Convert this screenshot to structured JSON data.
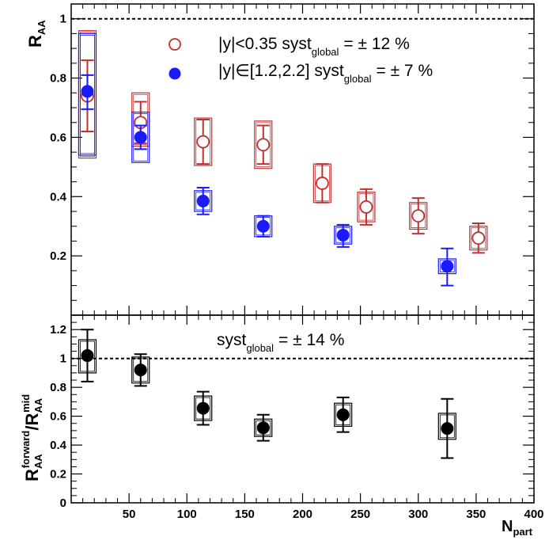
{
  "chart_data": [
    {
      "type": "scatter",
      "panel": "top",
      "ylabel": "R",
      "ylabel_sub": "AA",
      "xlim": [
        0,
        400
      ],
      "ylim": [
        0,
        1.05
      ],
      "x_ticks": [
        50,
        100,
        150,
        200,
        250,
        300,
        350,
        400
      ],
      "y_ticks": [
        0.2,
        0.4,
        0.6,
        0.8,
        1
      ],
      "y_tick_labels": [
        "0.2",
        "0.4",
        "0.6",
        "0.8",
        "1"
      ],
      "reference_line": 1,
      "legend_placement": "top-center",
      "series": [
        {
          "legend": {
            "main": "|y|<0.35   syst",
            "sub": "global",
            "tail": "= ± 12 %"
          },
          "marker": "open-circle",
          "color": "#c03030",
          "points": [
            {
              "x": 14,
              "y": 0.74,
              "stat_lo": 0.62,
              "stat_hi": 0.86,
              "sys_lo": 0.53,
              "sys_hi": 0.96
            },
            {
              "x": 60,
              "y": 0.65,
              "stat_lo": 0.58,
              "stat_hi": 0.72,
              "sys_lo": 0.57,
              "sys_hi": 0.75
            },
            {
              "x": 114,
              "y": 0.585,
              "stat_lo": 0.51,
              "stat_hi": 0.66,
              "sys_lo": 0.505,
              "sys_hi": 0.665
            },
            {
              "x": 166,
              "y": 0.575,
              "stat_lo": 0.51,
              "stat_hi": 0.64,
              "sys_lo": 0.495,
              "sys_hi": 0.655
            },
            {
              "x": 217,
              "y": 0.445,
              "stat_lo": 0.38,
              "stat_hi": 0.51,
              "sys_lo": 0.38,
              "sys_hi": 0.51
            },
            {
              "x": 255,
              "y": 0.365,
              "stat_lo": 0.305,
              "stat_hi": 0.425,
              "sys_lo": 0.315,
              "sys_hi": 0.415
            },
            {
              "x": 300,
              "y": 0.335,
              "stat_lo": 0.275,
              "stat_hi": 0.395,
              "sys_lo": 0.29,
              "sys_hi": 0.38
            },
            {
              "x": 352,
              "y": 0.26,
              "stat_lo": 0.21,
              "stat_hi": 0.31,
              "sys_lo": 0.22,
              "sys_hi": 0.3
            }
          ]
        },
        {
          "legend": {
            "main": "|y|∈[1.2,2.2]   syst",
            "sub": "global",
            "tail": "= ± 7 %"
          },
          "marker": "filled-circle",
          "color": "#1a1aff",
          "points": [
            {
              "x": 14,
              "y": 0.755,
              "stat_lo": 0.695,
              "stat_hi": 0.81,
              "sys_lo": 0.54,
              "sys_hi": 0.95
            },
            {
              "x": 60,
              "y": 0.6,
              "stat_lo": 0.56,
              "stat_hi": 0.64,
              "sys_lo": 0.515,
              "sys_hi": 0.685
            },
            {
              "x": 114,
              "y": 0.385,
              "stat_lo": 0.34,
              "stat_hi": 0.43,
              "sys_lo": 0.35,
              "sys_hi": 0.42
            },
            {
              "x": 166,
              "y": 0.3,
              "stat_lo": 0.265,
              "stat_hi": 0.335,
              "sys_lo": 0.265,
              "sys_hi": 0.335
            },
            {
              "x": 235,
              "y": 0.27,
              "stat_lo": 0.23,
              "stat_hi": 0.305,
              "sys_lo": 0.24,
              "sys_hi": 0.3
            },
            {
              "x": 325,
              "y": 0.165,
              "stat_lo": 0.1,
              "stat_hi": 0.225,
              "sys_lo": 0.14,
              "sys_hi": 0.19
            }
          ]
        }
      ]
    },
    {
      "type": "scatter",
      "panel": "bottom",
      "xlabel": "N",
      "xlabel_sub": "part",
      "ylabel": "R",
      "ylabel_sub": "AA",
      "ylabel_sup": "forward",
      "ylabel_mid": "/R",
      "ylabel_sub2": "AA",
      "ylabel_sup2": "mid",
      "xlim": [
        0,
        400
      ],
      "ylim": [
        0,
        1.3
      ],
      "x_ticks": [
        50,
        100,
        150,
        200,
        250,
        300,
        350,
        400
      ],
      "x_tick_labels": [
        "50",
        "100",
        "150",
        "200",
        "250",
        "300",
        "350",
        "400"
      ],
      "y_ticks": [
        0,
        0.2,
        0.4,
        0.6,
        0.8,
        1,
        1.2
      ],
      "y_tick_labels": [
        "0",
        "0.2",
        "0.4",
        "0.6",
        "0.8",
        "1",
        "1.2"
      ],
      "reference_line": 1,
      "annotation": {
        "main": "syst",
        "sub": "global",
        "tail": "= ± 14 %"
      },
      "series": [
        {
          "marker": "filled-circle",
          "color": "#000000",
          "points": [
            {
              "x": 14,
              "y": 1.02,
              "stat_lo": 0.84,
              "stat_hi": 1.2,
              "sys_lo": 0.9,
              "sys_hi": 1.13
            },
            {
              "x": 60,
              "y": 0.92,
              "stat_lo": 0.81,
              "stat_hi": 1.03,
              "sys_lo": 0.83,
              "sys_hi": 1.01
            },
            {
              "x": 114,
              "y": 0.655,
              "stat_lo": 0.54,
              "stat_hi": 0.77,
              "sys_lo": 0.57,
              "sys_hi": 0.74
            },
            {
              "x": 166,
              "y": 0.52,
              "stat_lo": 0.43,
              "stat_hi": 0.61,
              "sys_lo": 0.46,
              "sys_hi": 0.58
            },
            {
              "x": 235,
              "y": 0.61,
              "stat_lo": 0.49,
              "stat_hi": 0.73,
              "sys_lo": 0.53,
              "sys_hi": 0.69
            },
            {
              "x": 325,
              "y": 0.515,
              "stat_lo": 0.31,
              "stat_hi": 0.72,
              "sys_lo": 0.44,
              "sys_hi": 0.62
            }
          ]
        }
      ]
    }
  ]
}
